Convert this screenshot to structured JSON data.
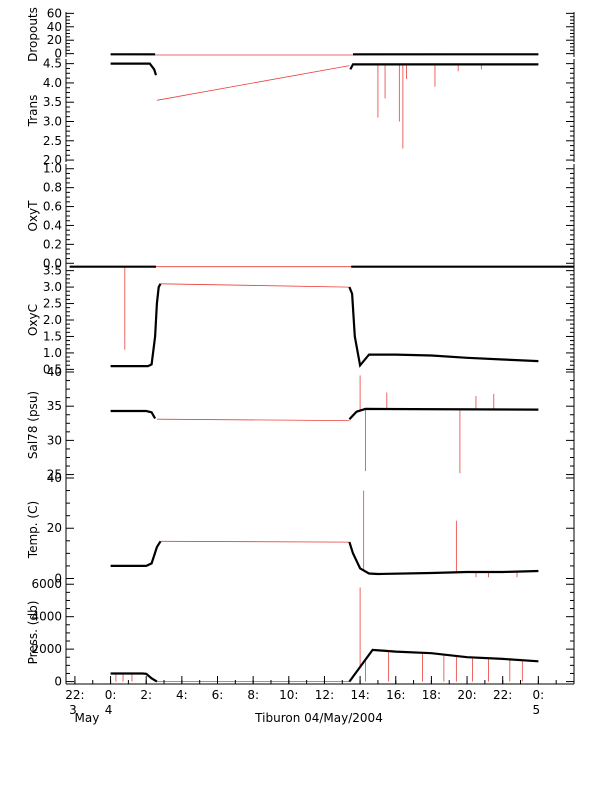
{
  "caption": "Tiburon 04/May/2004",
  "colors": {
    "raw": "#e8403a",
    "averaged": "#000000",
    "axis": "#000000"
  },
  "x_axis": {
    "range_hours": [
      -2.5,
      26.0
    ],
    "ticks": [
      {
        "hour": -2,
        "label": "22:",
        "sub1": "3",
        "sub2": "May"
      },
      {
        "hour": 0,
        "label": "0:",
        "sub1": "4",
        "sub2": ""
      },
      {
        "hour": 2,
        "label": "2:",
        "sub1": "",
        "sub2": ""
      },
      {
        "hour": 4,
        "label": "4:",
        "sub1": "",
        "sub2": ""
      },
      {
        "hour": 6,
        "label": "6:",
        "sub1": "",
        "sub2": ""
      },
      {
        "hour": 8,
        "label": "8:",
        "sub1": "",
        "sub2": ""
      },
      {
        "hour": 10,
        "label": "10:",
        "sub1": "",
        "sub2": ""
      },
      {
        "hour": 12,
        "label": "12:",
        "sub1": "",
        "sub2": ""
      },
      {
        "hour": 14,
        "label": "14:",
        "sub1": "",
        "sub2": ""
      },
      {
        "hour": 16,
        "label": "16:",
        "sub1": "",
        "sub2": ""
      },
      {
        "hour": 18,
        "label": "18:",
        "sub1": "",
        "sub2": ""
      },
      {
        "hour": 20,
        "label": "20:",
        "sub1": "",
        "sub2": ""
      },
      {
        "hour": 22,
        "label": "22:",
        "sub1": "",
        "sub2": ""
      },
      {
        "hour": 24,
        "label": "0:",
        "sub1": "5",
        "sub2": ""
      }
    ]
  },
  "chart_data": [
    {
      "type": "line",
      "ylabel": "Dropouts",
      "ylim": [
        -5,
        62
      ],
      "yticks": [
        {
          "v": 0,
          "t": "0"
        },
        {
          "v": 20,
          "t": "20"
        },
        {
          "v": 40,
          "t": "40"
        },
        {
          "v": 60,
          "t": "60"
        }
      ],
      "series": [
        {
          "role": "raw",
          "x": [
            0,
            2.6,
            13.5,
            24
          ],
          "y": [
            -1,
            -2,
            -2,
            -1
          ]
        },
        {
          "role": "averaged",
          "x": [
            0,
            2.5
          ],
          "y": [
            -1,
            -1
          ]
        },
        {
          "role": "averaged",
          "x": [
            13.6,
            24
          ],
          "y": [
            -1,
            -1
          ]
        }
      ]
    },
    {
      "type": "line",
      "ylabel": "Trans",
      "ylim": [
        1.95,
        4.62
      ],
      "yticks": [
        {
          "v": 2.0,
          "t": "2.0"
        },
        {
          "v": 2.5,
          "t": "2.5"
        },
        {
          "v": 3.0,
          "t": "3.0"
        },
        {
          "v": 3.5,
          "t": "3.5"
        },
        {
          "v": 4.0,
          "t": "4.0"
        },
        {
          "v": 4.5,
          "t": "4.5"
        }
      ],
      "series": [
        {
          "role": "raw",
          "x": [
            2.6,
            13.4
          ],
          "y": [
            3.55,
            4.45
          ]
        },
        {
          "role": "averaged",
          "x": [
            0,
            2.2,
            2.45,
            2.55
          ],
          "y": [
            4.5,
            4.5,
            4.35,
            4.2
          ]
        },
        {
          "role": "averaged",
          "x": [
            13.45,
            13.6,
            24
          ],
          "y": [
            4.35,
            4.48,
            4.48
          ]
        }
      ],
      "spikes": [
        [
          15.0,
          3.1
        ],
        [
          15.4,
          3.6
        ],
        [
          16.2,
          3.0
        ],
        [
          16.4,
          2.3
        ],
        [
          16.6,
          4.1
        ],
        [
          18.2,
          3.9
        ],
        [
          19.5,
          4.3
        ],
        [
          20.8,
          4.35
        ]
      ]
    },
    {
      "type": "line",
      "ylabel": "OxyT",
      "ylim": [
        -0.05,
        1.05
      ],
      "yticks": [
        {
          "v": 0,
          "t": "0.0"
        },
        {
          "v": 0.2,
          "t": "0.2"
        },
        {
          "v": 0.4,
          "t": "0.4"
        },
        {
          "v": 0.6,
          "t": "0.6"
        },
        {
          "v": 0.8,
          "t": "0.8"
        },
        {
          "v": 1.0,
          "t": "1.0"
        }
      ],
      "series": []
    },
    {
      "type": "line",
      "ylabel": "OxyC",
      "ylim": [
        0.42,
        3.58
      ],
      "yticks": [
        {
          "v": 0.5,
          "t": "0.5"
        },
        {
          "v": 1.0,
          "t": "1.0"
        },
        {
          "v": 1.5,
          "t": "1.5"
        },
        {
          "v": 2.0,
          "t": "2.0"
        },
        {
          "v": 2.5,
          "t": "2.5"
        },
        {
          "v": 3.0,
          "t": "3.0"
        },
        {
          "v": 3.5,
          "t": "3.5"
        }
      ],
      "series": [
        {
          "role": "raw",
          "x": [
            -2.3,
            26
          ],
          "y": [
            3.62,
            3.62
          ]
        },
        {
          "role": "raw",
          "x": [
            2.8,
            13.4
          ],
          "y": [
            3.1,
            3.0
          ]
        },
        {
          "role": "averaged",
          "x": [
            -2.3,
            2.55
          ],
          "y": [
            3.62,
            3.62
          ]
        },
        {
          "role": "averaged",
          "x": [
            13.5,
            26
          ],
          "y": [
            3.62,
            3.62
          ]
        },
        {
          "role": "averaged",
          "x": [
            0,
            2.1,
            2.3,
            2.5,
            2.6,
            2.7,
            2.8
          ],
          "y": [
            0.6,
            0.6,
            0.65,
            1.5,
            2.5,
            3.0,
            3.1
          ]
        },
        {
          "role": "averaged",
          "x": [
            13.4,
            13.55,
            13.7,
            14.0,
            14.5,
            16,
            18,
            20,
            22,
            24
          ],
          "y": [
            3.0,
            2.8,
            1.5,
            0.62,
            0.95,
            0.95,
            0.92,
            0.85,
            0.8,
            0.75
          ]
        }
      ],
      "spikes": [
        [
          0.8,
          1.1
        ]
      ]
    },
    {
      "type": "line",
      "ylabel": "Sal78 (psu)",
      "ylim": [
        24.5,
        40.0
      ],
      "yticks": [
        {
          "v": 25,
          "t": "25"
        },
        {
          "v": 30,
          "t": "30"
        },
        {
          "v": 35,
          "t": "35"
        },
        {
          "v": 40,
          "t": "40"
        }
      ],
      "series": [
        {
          "role": "raw",
          "x": [
            2.6,
            13.4
          ],
          "y": [
            33.1,
            32.9
          ]
        },
        {
          "role": "averaged",
          "x": [
            0,
            2.0,
            2.3,
            2.5
          ],
          "y": [
            34.3,
            34.3,
            34.1,
            33.2
          ]
        },
        {
          "role": "averaged",
          "x": [
            13.4,
            13.8,
            14.3,
            24
          ],
          "y": [
            33.1,
            34.2,
            34.6,
            34.5
          ]
        }
      ],
      "spikes": [
        [
          14.0,
          39.5
        ],
        [
          14.3,
          25.5
        ],
        [
          19.6,
          25.2
        ],
        [
          15.5,
          37
        ],
        [
          20.5,
          36.5
        ],
        [
          21.5,
          36.8
        ]
      ]
    },
    {
      "type": "line",
      "ylabel": "Temp. (C)",
      "ylim": [
        -1,
        40
      ],
      "yticks": [
        {
          "v": 0,
          "t": "0"
        },
        {
          "v": 20,
          "t": "20"
        },
        {
          "v": 40,
          "t": "40"
        }
      ],
      "series": [
        {
          "role": "raw",
          "x": [
            2.8,
            13.4
          ],
          "y": [
            14.8,
            14.5
          ]
        },
        {
          "role": "averaged",
          "x": [
            0,
            2.0,
            2.3,
            2.6,
            2.8
          ],
          "y": [
            5.0,
            5.0,
            6.0,
            12.5,
            14.8
          ]
        },
        {
          "role": "averaged",
          "x": [
            13.4,
            13.6,
            14.0,
            14.5,
            15.0,
            18,
            20,
            22,
            24
          ],
          "y": [
            14.5,
            10.0,
            4.0,
            2.0,
            1.8,
            2.2,
            2.6,
            2.6,
            3.0
          ]
        }
      ],
      "spikes": [
        [
          14.2,
          35
        ],
        [
          19.4,
          23
        ],
        [
          20.5,
          0.5
        ],
        [
          21.2,
          0.5
        ],
        [
          22.8,
          0.5
        ]
      ]
    },
    {
      "type": "line",
      "ylabel": "Press. (db)",
      "ylim": [
        -150,
        6200
      ],
      "yticks": [
        {
          "v": 0,
          "t": "0"
        },
        {
          "v": 2000,
          "t": "2000"
        },
        {
          "v": 4000,
          "t": "4000"
        },
        {
          "v": 6000,
          "t": "6000"
        }
      ],
      "series": [
        {
          "role": "raw",
          "x": [
            2.6,
            13.4
          ],
          "y": [
            0,
            0
          ]
        },
        {
          "role": "averaged",
          "x": [
            0,
            1.8,
            2.0,
            2.3,
            2.6
          ],
          "y": [
            500,
            500,
            480,
            200,
            0
          ]
        },
        {
          "role": "averaged",
          "x": [
            13.4,
            14.7,
            16,
            18,
            20,
            22,
            24
          ],
          "y": [
            0,
            1950,
            1850,
            1750,
            1500,
            1400,
            1250
          ]
        }
      ],
      "spikes": [
        [
          0.3,
          0
        ],
        [
          0.7,
          0
        ],
        [
          1.2,
          0
        ],
        [
          14.0,
          5800
        ],
        [
          14.3,
          0
        ],
        [
          15.6,
          0
        ],
        [
          17.5,
          0
        ],
        [
          18.7,
          0
        ],
        [
          19.4,
          0
        ],
        [
          20.3,
          0
        ],
        [
          21.2,
          0
        ],
        [
          22.4,
          0
        ],
        [
          23.1,
          0
        ]
      ]
    }
  ]
}
